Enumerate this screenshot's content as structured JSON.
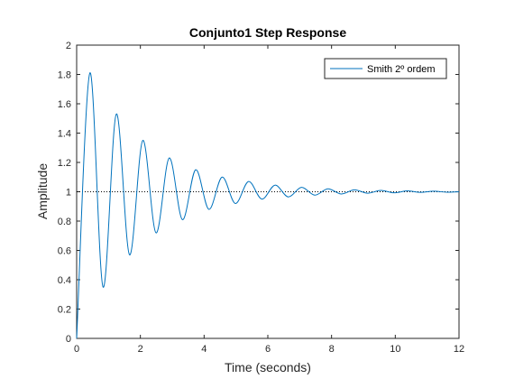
{
  "chart_data": {
    "type": "line",
    "title": "Conjunto1 Step Response",
    "xlabel": "Time (seconds)",
    "ylabel": "Amplitude",
    "xlim": [
      0,
      12
    ],
    "ylim": [
      0,
      2
    ],
    "x_ticks": [
      "0",
      "2",
      "4",
      "6",
      "8",
      "10",
      "12"
    ],
    "y_ticks": [
      "0",
      "0.2",
      "0.4",
      "0.6",
      "0.8",
      "1",
      "1.2",
      "1.4",
      "1.6",
      "1.8",
      "2"
    ],
    "grid": false,
    "legend": {
      "location": "top-right",
      "entries": [
        "Smith 2º ordem"
      ]
    },
    "reference_line": {
      "y": 1,
      "style": "dotted",
      "color": "#000000"
    },
    "series": [
      {
        "name": "Smith 2º ordem",
        "color": "#0072BD",
        "x": [
          0,
          0.415,
          0.83,
          1.245,
          1.66,
          2.075,
          2.49,
          2.905,
          3.32,
          3.735,
          4.15,
          4.565,
          4.98,
          5.395,
          5.81,
          6.225,
          6.64,
          7.055,
          7.47,
          7.885,
          8.3,
          8.715,
          9.13,
          9.545,
          9.96,
          10.375,
          10.79,
          11.205,
          11.62,
          12
        ],
        "y": [
          0,
          1.81,
          0.35,
          1.53,
          0.57,
          1.35,
          0.72,
          1.23,
          0.81,
          1.15,
          0.88,
          1.1,
          0.92,
          1.07,
          0.95,
          1.045,
          0.965,
          1.03,
          0.977,
          1.02,
          0.985,
          1.013,
          0.99,
          1.009,
          0.993,
          1.006,
          0.996,
          1.004,
          0.997,
          1.0
        ]
      }
    ]
  }
}
